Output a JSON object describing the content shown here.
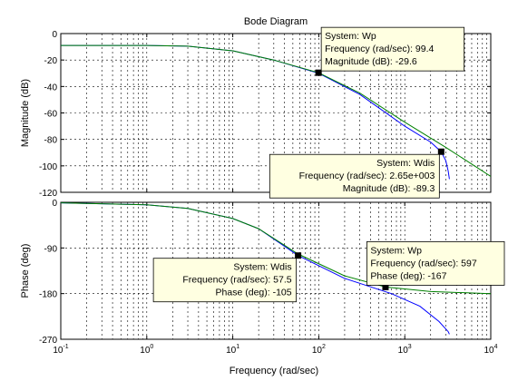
{
  "chart_data": {
    "type": "line",
    "title": "Bode Diagram",
    "xlabel": "Frequency  (rad/sec)",
    "xscale": "log",
    "xlim": [
      0.1,
      10000
    ],
    "xticks": [
      {
        "v": 0.1,
        "m": "10",
        "e": "-1"
      },
      {
        "v": 1,
        "m": "10",
        "e": "0"
      },
      {
        "v": 10,
        "m": "10",
        "e": "1"
      },
      {
        "v": 100,
        "m": "10",
        "e": "2"
      },
      {
        "v": 1000,
        "m": "10",
        "e": "3"
      },
      {
        "v": 10000,
        "m": "10",
        "e": "4"
      }
    ],
    "grid": true,
    "colors": {
      "Wp": "#008000",
      "Wdis": "#0000ff"
    },
    "panels": [
      {
        "key": "mag",
        "ylabel": "Magnitude (dB)",
        "ylim": [
          -120,
          0
        ],
        "yticks": [
          0,
          -20,
          -40,
          -60,
          -80,
          -100,
          -120
        ],
        "series": [
          {
            "name": "Wdis",
            "color": "#0000ff",
            "x": [
              0.1,
              1,
              3,
              10,
              30,
              100,
              300,
              1000,
              2000,
              2650,
              3000,
              3200,
              3300
            ],
            "y": [
              -9,
              -9,
              -9.5,
              -13,
              -20,
              -30,
              -46,
              -70,
              -82,
              -89.3,
              -96,
              -104,
              -110
            ]
          },
          {
            "name": "Wp",
            "color": "#008000",
            "x": [
              0.1,
              1,
              3,
              10,
              30,
              99.4,
              300,
              1000,
              3000,
              10000
            ],
            "y": [
              -9,
              -9,
              -9.5,
              -13,
              -20,
              -29.6,
              -45,
              -67,
              -86,
              -108
            ]
          }
        ]
      },
      {
        "key": "phase",
        "ylabel": "Phase (deg)",
        "ylim": [
          -270,
          0
        ],
        "yticks": [
          0,
          -90,
          -180,
          -270
        ],
        "ytick_labels": [
          "0",
          "-90",
          "-180",
          "-270"
        ],
        "series": [
          {
            "name": "Wdis",
            "color": "#0000ff",
            "x": [
              0.1,
              1,
              3,
              10,
              20,
              57.5,
              200,
              700,
              1500,
              2500,
              3200,
              3300
            ],
            "y": [
              -1,
              -5,
              -12,
              -32,
              -52,
              -105,
              -150,
              -180,
              -205,
              -235,
              -255,
              -260
            ]
          },
          {
            "name": "Wp",
            "color": "#008000",
            "x": [
              0.1,
              1,
              3,
              10,
              20,
              57.5,
              200,
              597,
              2000,
              10000
            ],
            "y": [
              -1,
              -5,
              -12,
              -32,
              -52,
              -102,
              -145,
              -167,
              -176,
              -180
            ]
          }
        ]
      }
    ],
    "datatips": [
      {
        "panel": "mag",
        "x": 99.4,
        "y": -29.6,
        "align": "left",
        "lines": [
          "System: Wp",
          "Frequency (rad/sec): 99.4",
          "Magnitude (dB): -29.6"
        ]
      },
      {
        "panel": "mag",
        "x": 2650,
        "y": -89.3,
        "align": "right",
        "lines": [
          "System: Wdis",
          "Frequency (rad/sec): 2.65e+003",
          "Magnitude (dB): -89.3"
        ]
      },
      {
        "panel": "phase",
        "x": 57.5,
        "y": -105,
        "align": "right",
        "lines": [
          "System: Wdis",
          "Frequency (rad/sec): 57.5",
          "Phase (deg): -105"
        ]
      },
      {
        "panel": "phase",
        "x": 597,
        "y": -167,
        "align": "left",
        "lines": [
          "System: Wp",
          "Frequency (rad/sec): 597",
          "Phase (deg): -167"
        ]
      }
    ]
  }
}
